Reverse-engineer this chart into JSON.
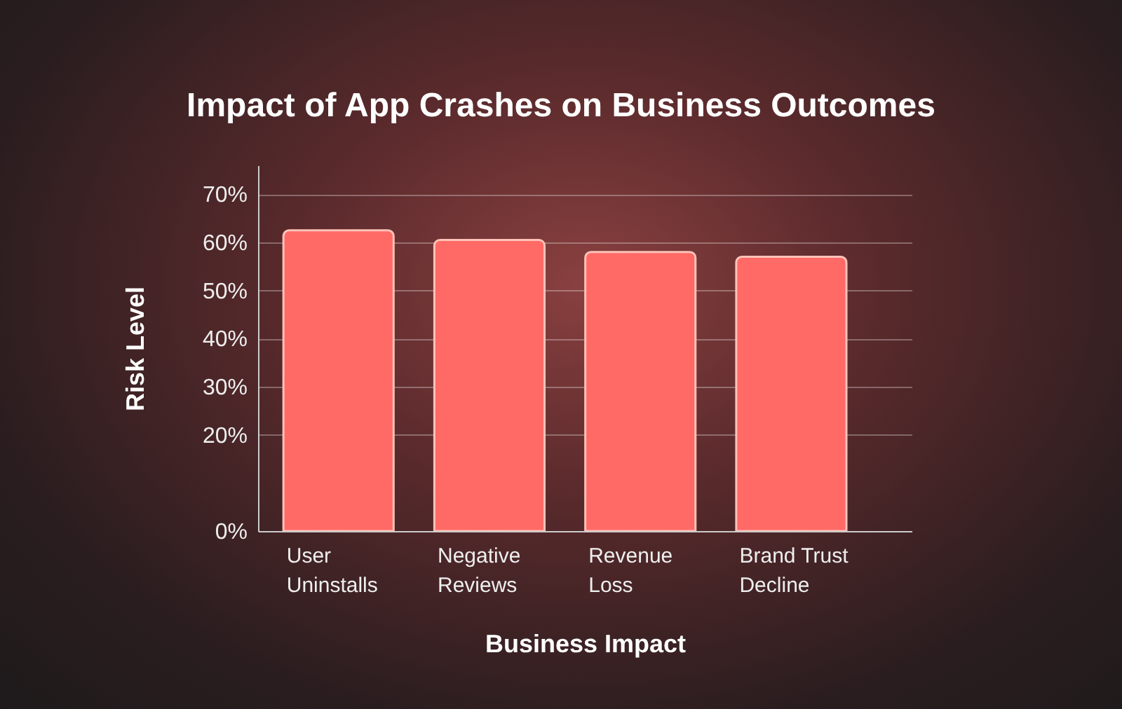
{
  "chart_data": {
    "type": "bar",
    "title": "Impact of App Crashes on Business Outcomes",
    "xlabel": "Business Impact",
    "ylabel": "Risk Level",
    "categories": [
      "User\nUninstalls",
      "Negative\nReviews",
      "Revenue\nLoss",
      "Brand Trust\nDecline"
    ],
    "values": [
      62.5,
      60.5,
      58,
      57
    ],
    "color": "#ff6a66",
    "ylim": [
      0,
      76
    ],
    "yticks": [
      {
        "value": 0,
        "label": "0%"
      },
      {
        "value": 20,
        "label": "20%"
      },
      {
        "value": 30,
        "label": "30%"
      },
      {
        "value": 40,
        "label": "40%"
      },
      {
        "value": 50,
        "label": "50%"
      },
      {
        "value": 60,
        "label": "60%"
      },
      {
        "value": 70,
        "label": "70%"
      }
    ],
    "grid": "y"
  }
}
